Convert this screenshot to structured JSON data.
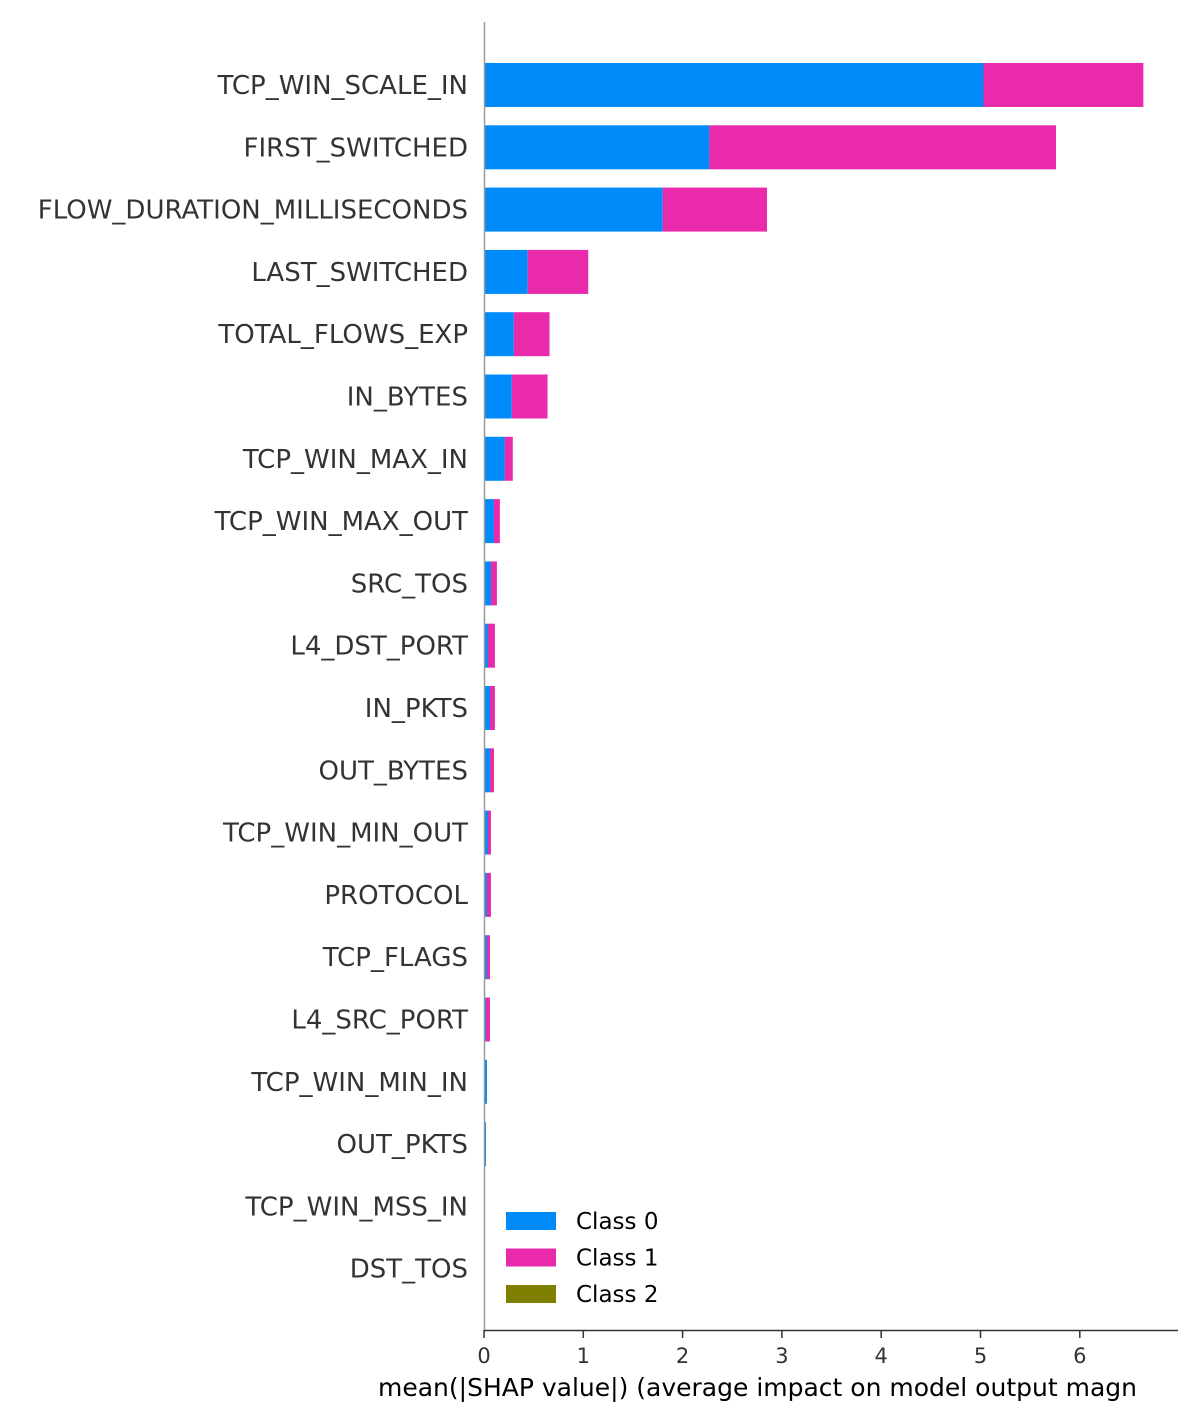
{
  "chart_data": {
    "type": "bar",
    "orientation": "horizontal",
    "stacked": true,
    "title": "",
    "xlabel": "mean(|SHAP value|) (average impact on model output magn",
    "ylabel": "",
    "xlim": [
      0,
      7
    ],
    "xticks": [
      "0",
      "1",
      "2",
      "3",
      "4",
      "5",
      "6"
    ],
    "grid": false,
    "legend_position": "lower-left",
    "categories": [
      "TCP_WIN_SCALE_IN",
      "FIRST_SWITCHED",
      "FLOW_DURATION_MILLISECONDS",
      "LAST_SWITCHED",
      "TOTAL_FLOWS_EXP",
      "IN_BYTES",
      "TCP_WIN_MAX_IN",
      "TCP_WIN_MAX_OUT",
      "SRC_TOS",
      "L4_DST_PORT",
      "IN_PKTS",
      "OUT_BYTES",
      "TCP_WIN_MIN_OUT",
      "PROTOCOL",
      "TCP_FLAGS",
      "L4_SRC_PORT",
      "TCP_WIN_MIN_IN",
      "OUT_PKTS",
      "TCP_WIN_MSS_IN",
      "DST_TOS"
    ],
    "series": [
      {
        "name": "Class 0",
        "color": "#008bfb",
        "values": [
          5.03,
          2.27,
          1.8,
          0.44,
          0.3,
          0.28,
          0.21,
          0.1,
          0.07,
          0.04,
          0.06,
          0.06,
          0.04,
          0.03,
          0.03,
          0.02,
          0.03,
          0.02,
          0.0,
          0.0
        ]
      },
      {
        "name": "Class 1",
        "color": "#e92aab",
        "values": [
          1.61,
          3.49,
          1.05,
          0.61,
          0.36,
          0.36,
          0.08,
          0.06,
          0.06,
          0.07,
          0.05,
          0.04,
          0.03,
          0.04,
          0.03,
          0.04,
          0.0,
          0.0,
          0.01,
          0.01
        ]
      },
      {
        "name": "Class 2",
        "color": "#808000",
        "values": [
          0,
          0,
          0,
          0,
          0,
          0,
          0,
          0,
          0,
          0,
          0,
          0,
          0,
          0,
          0,
          0,
          0,
          0,
          0,
          0
        ]
      }
    ]
  }
}
